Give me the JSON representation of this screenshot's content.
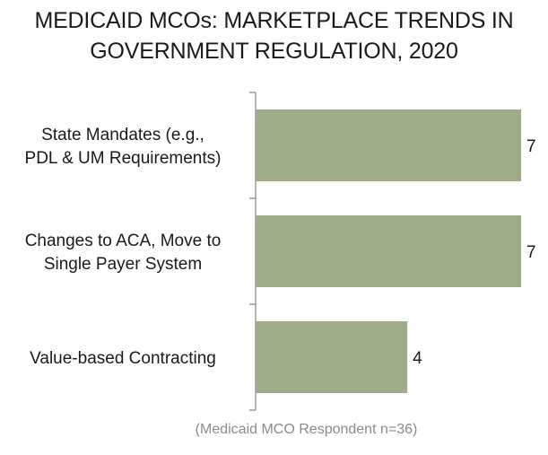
{
  "chart_data": {
    "type": "bar",
    "orientation": "horizontal",
    "title": "MEDICAID MCOs: MARKETPLACE TRENDS IN GOVERNMENT REGULATION, 2020",
    "title_lines": [
      "MEDICAID MCOs: MARKETPLACE TRENDS IN",
      "GOVERNMENT REGULATION, 2020"
    ],
    "categories": [
      [
        "State Mandates (e.g.,",
        "PDL & UM Requirements)"
      ],
      [
        "Changes to ACA, Move to",
        "Single Payer System"
      ],
      [
        "Value-based Contracting"
      ]
    ],
    "values": [
      7,
      7,
      4
    ],
    "data_labels": [
      "7",
      "7",
      "4"
    ],
    "xlim": [
      0,
      7
    ],
    "grid": false,
    "legend": "none",
    "bar_color": "#9fac8a",
    "axis_color": "#8c8c8c"
  },
  "footnote": "(Medicaid MCO Respondent n=36)"
}
